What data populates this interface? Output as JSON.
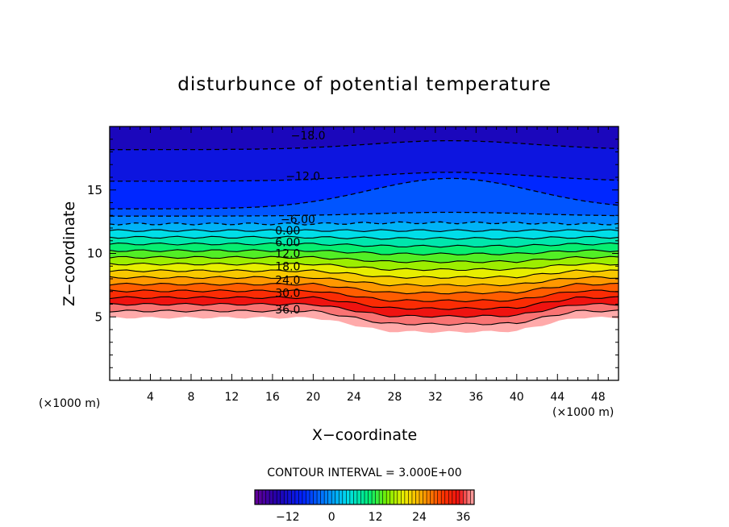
{
  "chart_data": {
    "type": "contour",
    "title": "disturbunce of potential temperature",
    "xlabel": "X−coordinate",
    "ylabel": "Z−coordinate",
    "x_unit": "(×1000 m)",
    "y_unit": "(×1000 m)",
    "xlim": [
      0,
      50
    ],
    "ylim": [
      0,
      20
    ],
    "x_ticks": [
      4,
      8,
      12,
      16,
      20,
      24,
      28,
      32,
      36,
      40,
      44,
      48
    ],
    "y_ticks": [
      5,
      10,
      15
    ],
    "contour_interval_text": "CONTOUR INTERVAL = 3.000E+00",
    "value_range": [
      -21,
      39
    ],
    "levels": [
      -21,
      -18,
      -15,
      -12,
      -9,
      -6,
      -3,
      0,
      3,
      6,
      9,
      12,
      15,
      18,
      21,
      24,
      27,
      30,
      33,
      36,
      39
    ],
    "contour_labels": [
      {
        "text": "−18.0",
        "x": 19.5,
        "z": 19.3
      },
      {
        "text": "−12.0",
        "x": 19.0,
        "z": 16.1
      },
      {
        "text": "−6.00",
        "x": 18.5,
        "z": 12.7
      },
      {
        "text": "0.00",
        "x": 17.5,
        "z": 11.8
      },
      {
        "text": "6.00",
        "x": 17.5,
        "z": 10.9
      },
      {
        "text": "12.0",
        "x": 17.5,
        "z": 10.0
      },
      {
        "text": "18.0",
        "x": 17.5,
        "z": 9.0
      },
      {
        "text": "24.0",
        "x": 17.5,
        "z": 7.9
      },
      {
        "text": "30.0",
        "x": 17.5,
        "z": 6.9
      },
      {
        "text": "36.0",
        "x": 17.5,
        "z": 5.6
      }
    ],
    "colorbar": {
      "ticks": [
        -12,
        0,
        12,
        24,
        36
      ],
      "tick_labels": [
        "−12",
        "0",
        "12",
        "24",
        "36"
      ]
    },
    "grid": false,
    "legend": "none"
  }
}
